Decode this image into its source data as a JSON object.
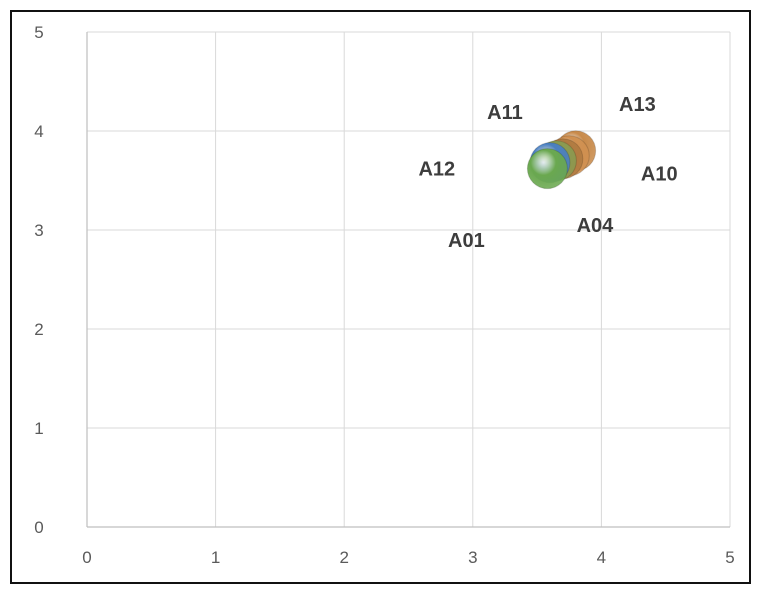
{
  "chart_data": {
    "type": "scatter",
    "title": "",
    "xlabel": "",
    "ylabel": "",
    "xlim": [
      0,
      5
    ],
    "ylim": [
      0,
      5
    ],
    "x_ticks": [
      "0",
      "1",
      "2",
      "3",
      "4",
      "5"
    ],
    "y_ticks": [
      "0",
      "1",
      "2",
      "3",
      "4",
      "5"
    ],
    "grid": true,
    "legend": "none",
    "points": [
      {
        "x": 3.8,
        "y": 3.8,
        "color": "#c88a4a"
      },
      {
        "x": 3.75,
        "y": 3.75,
        "color": "#d09050"
      },
      {
        "x": 3.7,
        "y": 3.72,
        "color": "#b07a40"
      },
      {
        "x": 3.65,
        "y": 3.7,
        "color": "#8a9a50"
      },
      {
        "x": 3.6,
        "y": 3.68,
        "color": "#4a7fc0"
      },
      {
        "x": 3.58,
        "y": 3.62,
        "color": "#6aa84f"
      }
    ],
    "point_labels": [
      {
        "text": "A11",
        "x": 3.25,
        "y": 4.12
      },
      {
        "text": "A13",
        "x": 4.28,
        "y": 4.2
      },
      {
        "text": "A12",
        "x": 2.72,
        "y": 3.55
      },
      {
        "text": "A10",
        "x": 4.45,
        "y": 3.5
      },
      {
        "text": "A01",
        "x": 2.95,
        "y": 2.83
      },
      {
        "text": "A04",
        "x": 3.95,
        "y": 2.98
      }
    ]
  }
}
